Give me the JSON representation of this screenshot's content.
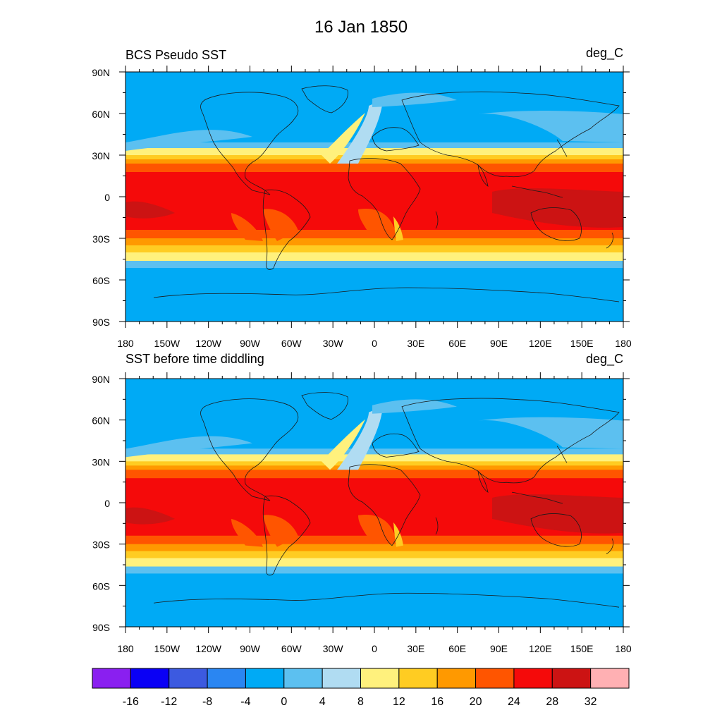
{
  "figure_title": "16 Jan 1850",
  "panels": [
    {
      "title": "BCS Pseudo SST",
      "units": "deg_C"
    },
    {
      "title": "SST before time diddling",
      "units": "deg_C"
    }
  ],
  "lat_labels": [
    "90N",
    "60N",
    "30N",
    "0",
    "30S",
    "60S",
    "90S"
  ],
  "lon_labels": [
    "180",
    "150W",
    "120W",
    "90W",
    "60W",
    "30W",
    "0",
    "30E",
    "60E",
    "90E",
    "120E",
    "150E",
    "180"
  ],
  "colorbar": {
    "labels": [
      "-16",
      "-12",
      "-8",
      "-4",
      "0",
      "4",
      "8",
      "12",
      "16",
      "20",
      "24",
      "28",
      "32"
    ],
    "colors": [
      "#8a1ff0",
      "#0a00f5",
      "#3c5ae0",
      "#2a86f2",
      "#00aaf5",
      "#5cc0f0",
      "#b0dcf2",
      "#fff17d",
      "#ffcc22",
      "#ff9900",
      "#ff5500",
      "#f50a0a",
      "#cc1313",
      "#ffb0b3"
    ]
  },
  "colors": {
    "coast": "#1a1a1a",
    "frame": "#000000"
  }
}
